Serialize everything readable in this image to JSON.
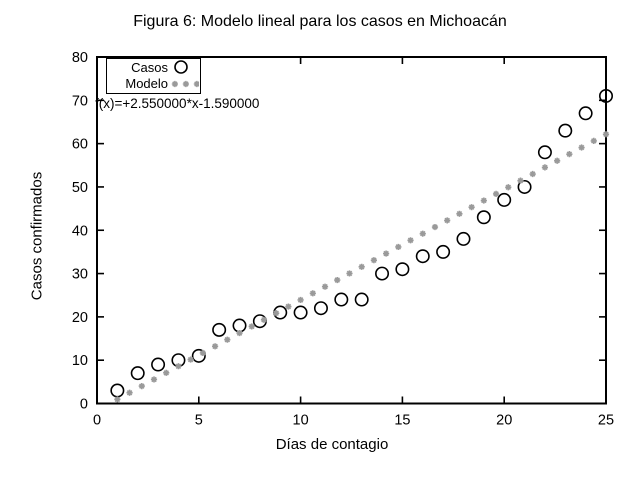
{
  "colors": {
    "background": "#ffffff",
    "text": "#000000",
    "axis": "#000000",
    "casos_marker": "#000000",
    "modelo_marker": "#9a9a9a"
  },
  "chart_data": {
    "type": "scatter",
    "title": "Figura 6: Modelo lineal para los casos en Michoacán",
    "xlabel": "Días de contagio",
    "ylabel": "Casos confirmados",
    "xlim": [
      0,
      25
    ],
    "ylim": [
      0,
      80
    ],
    "xticks": [
      0,
      5,
      10,
      15,
      20,
      25
    ],
    "yticks": [
      0,
      10,
      20,
      30,
      40,
      50,
      60,
      70,
      80
    ],
    "grid": false,
    "ticks_mirrored": true,
    "legend_position": "top-left",
    "annotation": "f(x)=+2.550000*x-1.590000",
    "series": [
      {
        "name": "Casos",
        "marker": "open-circle",
        "color": "#000000",
        "x": [
          1,
          2,
          3,
          4,
          5,
          6,
          7,
          8,
          9,
          10,
          11,
          12,
          13,
          14,
          15,
          16,
          17,
          18,
          19,
          20,
          21,
          22,
          23,
          24,
          25
        ],
        "y": [
          3,
          7,
          9,
          10,
          11,
          17,
          18,
          19,
          21,
          21,
          22,
          24,
          24,
          30,
          31,
          34,
          35,
          38,
          43,
          47,
          50,
          58,
          63,
          67,
          71
        ]
      },
      {
        "name": "Modelo",
        "marker": "asterisk",
        "color": "#9a9a9a",
        "model": {
          "expression": "f(x)=+2.550000*x-1.590000",
          "slope": 2.55,
          "intercept": -1.59,
          "x_start": 1,
          "x_step": 0.6,
          "n_points": 41
        }
      }
    ]
  }
}
